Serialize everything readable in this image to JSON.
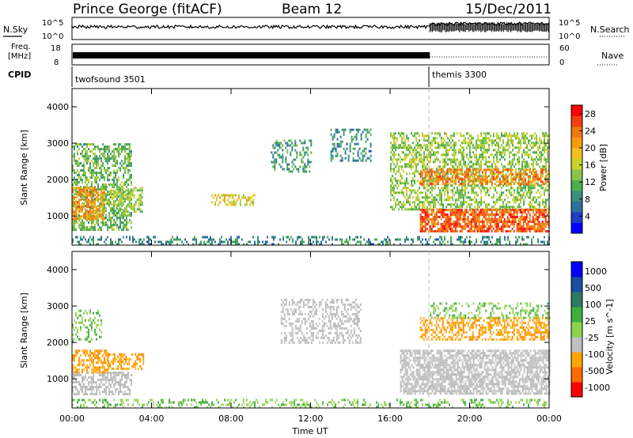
{
  "header": {
    "station": "Prince George (fitACF)",
    "beam": "Beam 12",
    "date": "15/Dec/2011"
  },
  "top_panels": {
    "nsky_label": "N.Sky",
    "nsearch_label": "N.Search",
    "nsky_ticks": [
      "10^5",
      "10^0"
    ],
    "freq_label_line1": "Freq.",
    "freq_label_line2": "[MHz]",
    "freq_ticks": [
      "18",
      "8"
    ],
    "nave_label": "Nave",
    "nave_ticks": [
      "60",
      "0"
    ],
    "cpid_label": "CPID",
    "cpid_segments": [
      {
        "name": "twofsound 3501",
        "start_hour": 0,
        "end_hour": 18
      },
      {
        "name": "themis 3300",
        "start_hour": 18,
        "end_hour": 24
      }
    ]
  },
  "x_axis": {
    "label": "Time UT",
    "ticks": [
      "00:00",
      "04:00",
      "08:00",
      "12:00",
      "16:00",
      "20:00",
      "00:00"
    ],
    "range_hours": [
      0,
      24
    ]
  },
  "colors": {
    "power": [
      "#0000ff",
      "#1e3fc8",
      "#2e6f9e",
      "#3a8f7a",
      "#4caf50",
      "#8bc34a",
      "#c8d42a",
      "#f0c020",
      "#f59b10",
      "#f07810",
      "#f04010",
      "#ff0000"
    ],
    "velocity": [
      "#ff0000",
      "#ff6a00",
      "#ffa500",
      "#c0c0c0",
      "#8dd44a",
      "#3fae3f",
      "#2e7b63",
      "#1a4ea0",
      "#0000ff"
    ]
  },
  "chart_data": [
    {
      "type": "heatmap",
      "name": "power",
      "ylabel": "Slant Range [km]",
      "ylim": [
        200,
        4500
      ],
      "yticks": [
        1000,
        2000,
        3000,
        4000
      ],
      "colorbar_label": "Power [dB]",
      "colorbar_ticks": [
        "4",
        "8",
        "12",
        "16",
        "20",
        "24",
        "28"
      ],
      "colorbar_range": [
        0,
        30
      ],
      "regions": [
        {
          "t0": 0.0,
          "t1": 3.0,
          "r0": 600,
          "r1": 3000,
          "value": 12,
          "density": 0.55
        },
        {
          "t0": 0.0,
          "t1": 1.6,
          "r0": 900,
          "r1": 1800,
          "value": 22,
          "density": 0.7
        },
        {
          "t0": 1.5,
          "t1": 3.5,
          "r0": 1100,
          "r1": 1800,
          "value": 14,
          "density": 0.5
        },
        {
          "t0": 7.0,
          "t1": 9.2,
          "r0": 1300,
          "r1": 1600,
          "value": 18,
          "density": 0.5
        },
        {
          "t0": 10.0,
          "t1": 12.0,
          "r0": 2200,
          "r1": 3100,
          "value": 9,
          "density": 0.35
        },
        {
          "t0": 13.0,
          "t1": 15.0,
          "r0": 2500,
          "r1": 3400,
          "value": 8,
          "density": 0.3
        },
        {
          "t0": 16.0,
          "t1": 24.0,
          "r0": 1200,
          "r1": 3300,
          "value": 14,
          "density": 0.5
        },
        {
          "t0": 17.5,
          "t1": 24.0,
          "r0": 600,
          "r1": 1200,
          "value": 26,
          "density": 0.75
        },
        {
          "t0": 17.5,
          "t1": 24.0,
          "r0": 1900,
          "r1": 2300,
          "value": 24,
          "density": 0.55
        },
        {
          "t0": 0.0,
          "t1": 24.0,
          "r0": 250,
          "r1": 450,
          "value": 8,
          "density": 0.35
        }
      ]
    },
    {
      "type": "heatmap",
      "name": "velocity",
      "ylabel": "Slant Range [km]",
      "ylim": [
        200,
        4500
      ],
      "yticks": [
        1000,
        2000,
        3000,
        4000
      ],
      "colorbar_label": "Velocity [m s^-1]",
      "colorbar_ticks": [
        "1000",
        "500",
        "100",
        "25",
        "-25",
        "-100",
        "-500",
        "-1000"
      ],
      "regions": [
        {
          "t0": 0.0,
          "t1": 3.0,
          "r0": 600,
          "r1": 1200,
          "value": "gray",
          "density": 0.6
        },
        {
          "t0": 0.0,
          "t1": 1.8,
          "r0": 1200,
          "r1": 1800,
          "value": "orange",
          "density": 0.55
        },
        {
          "t0": 1.8,
          "t1": 3.6,
          "r0": 1300,
          "r1": 1700,
          "value": "orange",
          "density": 0.5
        },
        {
          "t0": 0.0,
          "t1": 1.5,
          "r0": 2000,
          "r1": 2900,
          "value": "green",
          "density": 0.35
        },
        {
          "t0": 10.5,
          "t1": 14.5,
          "r0": 2000,
          "r1": 3200,
          "value": "gray",
          "density": 0.4
        },
        {
          "t0": 16.5,
          "t1": 24.0,
          "r0": 600,
          "r1": 1800,
          "value": "gray",
          "density": 0.7
        },
        {
          "t0": 17.5,
          "t1": 24.0,
          "r0": 2100,
          "r1": 2700,
          "value": "orange",
          "density": 0.5
        },
        {
          "t0": 18.0,
          "t1": 24.0,
          "r0": 2700,
          "r1": 3100,
          "value": "green",
          "density": 0.3
        },
        {
          "t0": 0.0,
          "t1": 24.0,
          "r0": 250,
          "r1": 450,
          "value": "green",
          "density": 0.3
        }
      ]
    }
  ]
}
